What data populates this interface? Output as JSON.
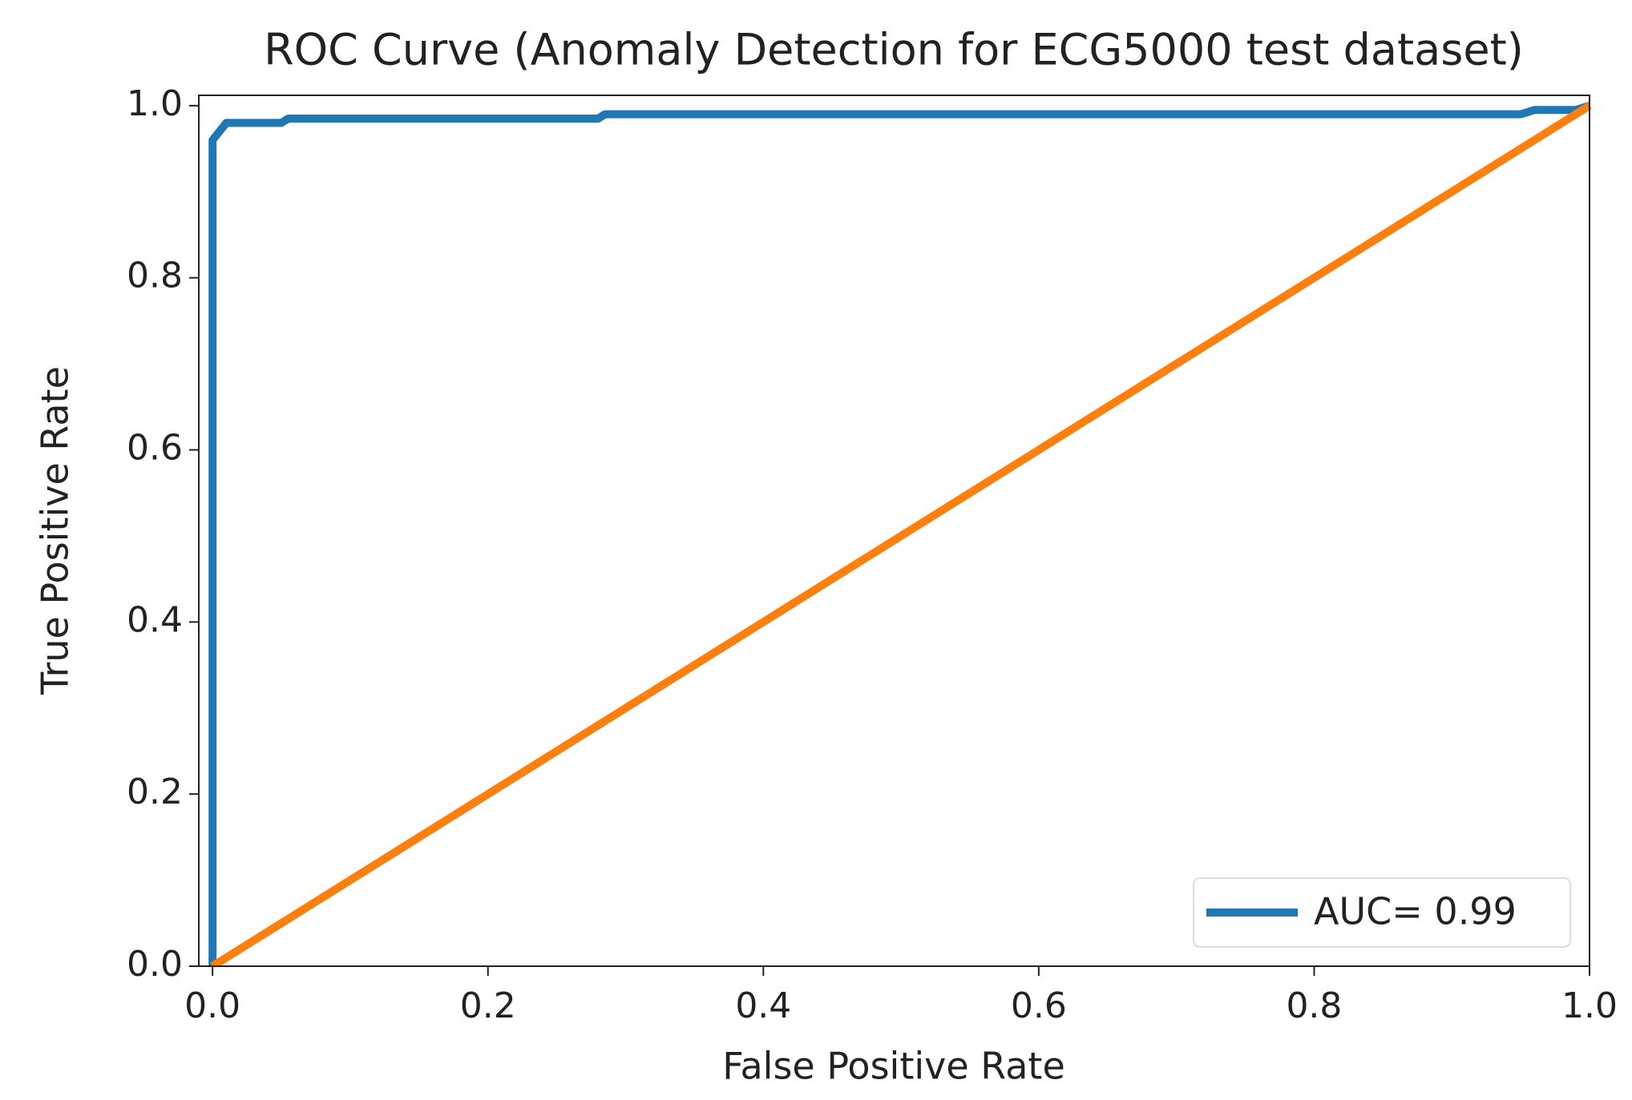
{
  "chart_data": {
    "type": "line",
    "title": "ROC Curve (Anomaly Detection for ECG5000 test dataset)",
    "xlabel": "False Positive Rate",
    "ylabel": "True Positive Rate",
    "xlim": [
      -0.01,
      1.0
    ],
    "ylim": [
      0,
      1.012
    ],
    "xticks": [
      {
        "value": 0,
        "label": "0.0"
      },
      0.2,
      0.4,
      0.6,
      0.8,
      {
        "value": 1,
        "label": "1.0"
      }
    ],
    "yticks": [
      {
        "value": 0,
        "label": "0.0"
      },
      0.2,
      0.4,
      0.6,
      0.8,
      {
        "value": 1,
        "label": "1.0"
      }
    ],
    "legend": "lower right",
    "series": [
      {
        "name": "AUC= 0.99",
        "color": "#1f77b4",
        "x": [
          0,
          0,
          0.005,
          0.01,
          0.05,
          0.055,
          0.28,
          0.285,
          0.95,
          0.96,
          0.99,
          1
        ],
        "values": [
          0,
          0.96,
          0.97,
          0.98,
          0.98,
          0.985,
          0.985,
          0.99,
          0.99,
          0.995,
          0.995,
          1
        ]
      },
      {
        "color": "#ff7f0e",
        "x": [
          0,
          1
        ],
        "values": [
          0,
          1
        ]
      }
    ]
  }
}
